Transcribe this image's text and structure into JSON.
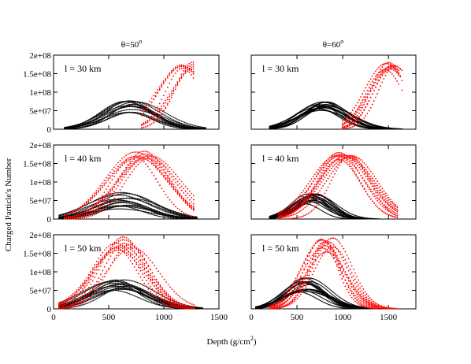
{
  "figure": {
    "ylabel": "Charged Particle's Number",
    "xlabel_main": "Depth (g/cm",
    "xlabel_sup": "2",
    "xlabel_end": ")",
    "column_titles": [
      {
        "main": "θ=50",
        "sup": "o"
      },
      {
        "main": "θ=60",
        "sup": "o"
      }
    ]
  },
  "colors": {
    "black_series": "#000000",
    "red_series": "#ff0000"
  },
  "chart_data": [
    {
      "type": "scatter",
      "panel": "θ=50°, l = 30 km",
      "annotation": "l = 30 km",
      "xlim": [
        0,
        1500
      ],
      "ylim": [
        0,
        200000000
      ],
      "x_ticks": [
        0,
        500,
        1000,
        1500
      ],
      "x_tick_labels": [
        "",
        "",
        "",
        ""
      ],
      "y_ticks": [
        0,
        50000000,
        100000000,
        150000000,
        200000000
      ],
      "y_tick_labels": [
        "0",
        "5e+07",
        "1e+08",
        "1.5e+08",
        "2e+08"
      ],
      "black": {
        "x_min": 100,
        "x_max": 1380,
        "peak_x": 700,
        "peak_y_range": [
          45000000,
          78000000
        ],
        "width": 230,
        "n_curves": 14
      },
      "red": {
        "x_min": 800,
        "x_max": 1280,
        "peak_x": 1230,
        "peak_y_range": [
          160000000,
          190000000
        ],
        "width": 200,
        "n_curves": 8,
        "truncated_at": 1280
      }
    },
    {
      "type": "scatter",
      "panel": "θ=60°, l = 30 km",
      "annotation": "l = 30 km",
      "xlim": [
        0,
        1800
      ],
      "ylim": [
        0,
        200000000
      ],
      "x_ticks": [
        0,
        500,
        1000,
        1500
      ],
      "x_tick_labels": [
        "",
        "",
        "",
        ""
      ],
      "y_ticks": [
        0,
        50000000,
        100000000,
        150000000,
        200000000
      ],
      "y_tick_labels": [
        "",
        "",
        "",
        "",
        ""
      ],
      "black": {
        "x_min": 200,
        "x_max": 1650,
        "peak_x": 780,
        "peak_y_range": [
          50000000,
          75000000
        ],
        "width": 250,
        "n_curves": 14
      },
      "red": {
        "x_min": 1000,
        "x_max": 1720,
        "peak_x": 1530,
        "peak_y_range": [
          160000000,
          180000000
        ],
        "width": 200,
        "n_curves": 8,
        "truncated_at": 1600
      }
    },
    {
      "type": "scatter",
      "panel": "θ=50°, l = 40 km",
      "annotation": "l = 40 km",
      "xlim": [
        0,
        1500
      ],
      "ylim": [
        0,
        200000000
      ],
      "x_ticks": [
        0,
        500,
        1000,
        1500
      ],
      "x_tick_labels": [
        "",
        "",
        "",
        ""
      ],
      "y_ticks": [
        0,
        50000000,
        100000000,
        150000000,
        200000000
      ],
      "y_tick_labels": [
        "0",
        "5e+07",
        "1e+08",
        "1.5e+08",
        "2e+08"
      ],
      "black": {
        "x_min": 50,
        "x_max": 1300,
        "peak_x": 620,
        "peak_y_range": [
          25000000,
          72000000
        ],
        "width": 250,
        "n_curves": 14
      },
      "red": {
        "x_min": 100,
        "x_max": 1280,
        "peak_x": 800,
        "peak_y_range": [
          160000000,
          185000000
        ],
        "width": 240,
        "n_curves": 10
      }
    },
    {
      "type": "scatter",
      "panel": "θ=60°, l = 40 km",
      "annotation": "l = 40 km",
      "xlim": [
        0,
        1800
      ],
      "ylim": [
        0,
        200000000
      ],
      "x_ticks": [
        0,
        500,
        1000,
        1500
      ],
      "x_tick_labels": [
        "",
        "",
        "",
        ""
      ],
      "y_ticks": [
        0,
        50000000,
        100000000,
        150000000,
        200000000
      ],
      "y_tick_labels": [
        "",
        "",
        "",
        "",
        ""
      ],
      "black": {
        "x_min": 200,
        "x_max": 1500,
        "peak_x": 650,
        "peak_y_range": [
          40000000,
          68000000
        ],
        "width": 190,
        "n_curves": 14
      },
      "red": {
        "x_min": 300,
        "x_max": 1600,
        "peak_x": 1020,
        "peak_y_range": [
          160000000,
          180000000
        ],
        "width": 250,
        "n_curves": 10
      }
    },
    {
      "type": "scatter",
      "panel": "θ=50°, l = 50 km",
      "annotation": "l = 50 km",
      "xlim": [
        0,
        1500
      ],
      "ylim": [
        0,
        200000000
      ],
      "x_ticks": [
        0,
        500,
        1000,
        1500
      ],
      "x_tick_labels": [
        "0",
        "500",
        "1000",
        "1500"
      ],
      "y_ticks": [
        0,
        50000000,
        100000000,
        150000000,
        200000000
      ],
      "y_tick_labels": [
        "0",
        "5e+07",
        "1e+08",
        "1.5e+08",
        "2e+08"
      ],
      "black": {
        "x_min": 50,
        "x_max": 1350,
        "peak_x": 600,
        "peak_y_range": [
          50000000,
          80000000
        ],
        "width": 250,
        "n_curves": 14
      },
      "red": {
        "x_min": 50,
        "x_max": 1280,
        "peak_x": 640,
        "peak_y_range": [
          155000000,
          195000000
        ],
        "width": 210,
        "n_curves": 10
      }
    },
    {
      "type": "scatter",
      "panel": "θ=60°, l = 50 km",
      "annotation": "l = 50 km",
      "xlim": [
        0,
        1800
      ],
      "ylim": [
        0,
        200000000
      ],
      "x_ticks": [
        0,
        500,
        1000,
        1500
      ],
      "x_tick_labels": [
        "0",
        "500",
        "1000",
        "1500"
      ],
      "y_ticks": [
        0,
        50000000,
        100000000,
        150000000,
        200000000
      ],
      "y_tick_labels": [
        "",
        "",
        "",
        "",
        ""
      ],
      "black": {
        "x_min": 50,
        "x_max": 1550,
        "peak_x": 580,
        "peak_y_range": [
          45000000,
          85000000
        ],
        "width": 230,
        "n_curves": 14
      },
      "red": {
        "x_min": 200,
        "x_max": 1600,
        "peak_x": 830,
        "peak_y_range": [
          150000000,
          195000000
        ],
        "width": 210,
        "n_curves": 10
      }
    }
  ]
}
